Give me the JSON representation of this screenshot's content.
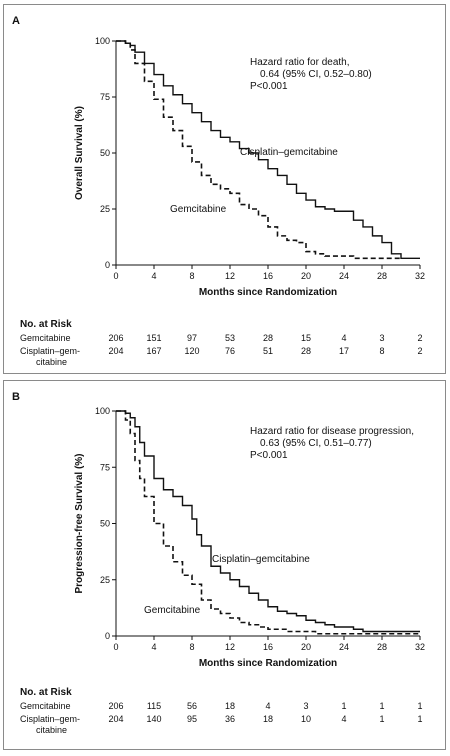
{
  "chart_data": [
    {
      "type": "line",
      "panel_label": "A",
      "ylabel": "Overall Survival (%)",
      "xlabel": "Months since Randomization",
      "xlim": [
        0,
        32
      ],
      "ylim": [
        0,
        100
      ],
      "x_ticks": [
        "0",
        "4",
        "8",
        "12",
        "16",
        "20",
        "24",
        "28",
        "32"
      ],
      "y_ticks": [
        "0",
        "25",
        "50",
        "75",
        "100"
      ],
      "annotation": [
        "Hazard ratio for death,",
        "0.64 (95% CI, 0.52–0.80)",
        "P<0.001"
      ],
      "series": [
        {
          "name": "Cisplatin–gemcitabine",
          "style": "solid",
          "x": [
            0,
            1,
            1.5,
            2,
            3,
            4,
            5,
            6,
            7,
            8,
            9,
            10,
            11,
            12,
            13,
            14,
            15,
            16,
            17,
            18,
            19,
            20,
            21,
            22,
            23,
            24,
            25,
            26,
            27,
            28,
            29,
            30,
            31,
            32
          ],
          "y": [
            100,
            99,
            98,
            95,
            90,
            85,
            80,
            76,
            72,
            68,
            64,
            60,
            57,
            55,
            52,
            50,
            47,
            43,
            40,
            36,
            32,
            29,
            26,
            25,
            24,
            24,
            20,
            17,
            13,
            10,
            5,
            3,
            3,
            3
          ]
        },
        {
          "name": "Gemcitabine",
          "style": "dashed",
          "x": [
            0,
            1,
            1.5,
            2,
            3,
            4,
            5,
            6,
            7,
            8,
            9,
            10,
            11,
            12,
            13,
            14,
            15,
            16,
            17,
            18,
            19,
            20,
            21,
            22,
            23,
            24,
            25,
            26,
            27,
            28,
            29,
            30
          ],
          "y": [
            100,
            99,
            96,
            90,
            82,
            74,
            66,
            60,
            53,
            46,
            40,
            36,
            34,
            32,
            27,
            25,
            22,
            17,
            13,
            11,
            10,
            6,
            5,
            4,
            4,
            4,
            3,
            3,
            3,
            3,
            3,
            3
          ]
        }
      ],
      "risk_table": {
        "title": "No. at Risk",
        "rows": [
          {
            "label": "Gemcitabine",
            "values": [
              "206",
              "151",
              "97",
              "53",
              "28",
              "15",
              "4",
              "3",
              "2"
            ]
          },
          {
            "label": "Cisplatin–gem-",
            "label2": "citabine",
            "values": [
              "204",
              "167",
              "120",
              "76",
              "51",
              "28",
              "17",
              "8",
              "2"
            ]
          }
        ]
      }
    },
    {
      "type": "line",
      "panel_label": "B",
      "ylabel": "Progression-free Survival (%)",
      "xlabel": "Months since Randomization",
      "xlim": [
        0,
        32
      ],
      "ylim": [
        0,
        100
      ],
      "x_ticks": [
        "0",
        "4",
        "8",
        "12",
        "16",
        "20",
        "24",
        "28",
        "32"
      ],
      "y_ticks": [
        "0",
        "25",
        "50",
        "75",
        "100"
      ],
      "annotation": [
        "Hazard ratio for disease progression,",
        "0.63 (95% CI, 0.51–0.77)",
        "P<0.001"
      ],
      "series": [
        {
          "name": "Cisplatin–gemcitabine",
          "style": "solid",
          "x": [
            0,
            1,
            1.5,
            2,
            2.5,
            3,
            4,
            5,
            6,
            7,
            8,
            8.5,
            9,
            10,
            11,
            12,
            13,
            14,
            15,
            16,
            17,
            18,
            19,
            20,
            21,
            22,
            23,
            24,
            25,
            26,
            28,
            30,
            32
          ],
          "y": [
            100,
            99,
            97,
            93,
            86,
            80,
            70,
            65,
            62,
            58,
            52,
            45,
            40,
            31,
            28,
            25,
            22,
            19,
            16,
            13,
            11,
            10,
            9,
            7,
            6,
            5,
            4,
            4,
            3,
            2,
            2,
            2,
            2
          ]
        },
        {
          "name": "Gemcitabine",
          "style": "dashed",
          "x": [
            0,
            1,
            1.5,
            2,
            2.5,
            3,
            4,
            5,
            6,
            7,
            8,
            9,
            10,
            11,
            12,
            13,
            14,
            15,
            16,
            17,
            18,
            19,
            20,
            21,
            22,
            24,
            26,
            28,
            30,
            32
          ],
          "y": [
            100,
            96,
            90,
            78,
            70,
            62,
            50,
            40,
            33,
            27,
            23,
            16,
            12,
            10,
            8,
            6,
            5,
            4,
            3,
            3,
            2,
            2,
            2,
            1,
            1,
            1,
            1,
            1,
            1,
            1
          ]
        }
      ],
      "risk_table": {
        "title": "No. at Risk",
        "rows": [
          {
            "label": "Gemcitabine",
            "values": [
              "206",
              "115",
              "56",
              "18",
              "4",
              "3",
              "1",
              "1",
              "1"
            ]
          },
          {
            "label": "Cisplatin–gem-",
            "label2": "citabine",
            "values": [
              "204",
              "140",
              "95",
              "36",
              "18",
              "10",
              "4",
              "1",
              "1"
            ]
          }
        ]
      }
    }
  ]
}
